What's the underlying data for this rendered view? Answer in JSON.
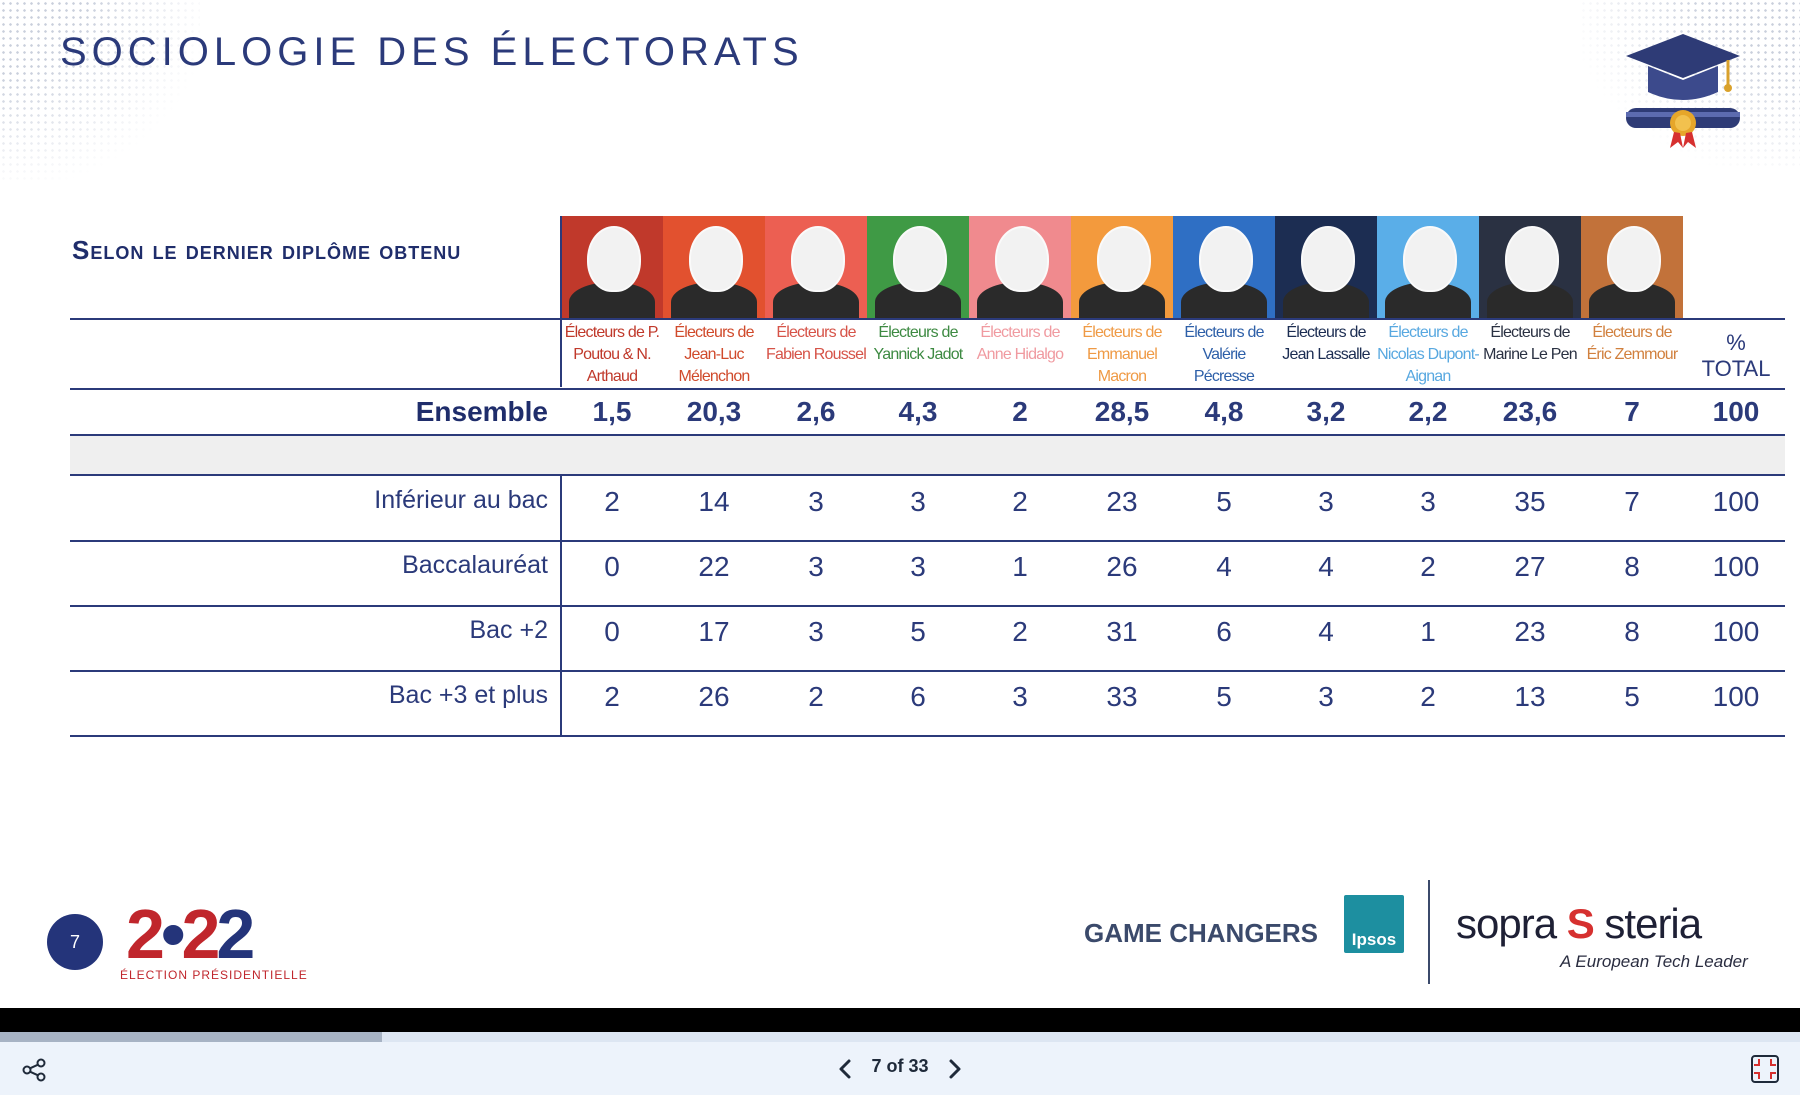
{
  "slide": {
    "title": "SOCIOLOGIE DES ÉLECTORATS",
    "subtitle": "Selon le dernier diplôme obtenu",
    "total_header_line1": "%",
    "total_header_line2": "TOTAL"
  },
  "candidates": [
    {
      "label": "Électeurs de P. Poutou & N. Arthaud",
      "header_color": "#c0392b",
      "label_color": "#c0392b"
    },
    {
      "label": "Électeurs de Jean-Luc Mélenchon",
      "header_color": "#e2512f",
      "label_color": "#d04a2b"
    },
    {
      "label": "Électeurs de Fabien Roussel",
      "header_color": "#ec5f52",
      "label_color": "#d65348"
    },
    {
      "label": "Électeurs de Yannick Jadot",
      "header_color": "#3f9a45",
      "label_color": "#3d8a42"
    },
    {
      "label": "Électeurs de Anne Hidalgo",
      "header_color": "#f08a8e",
      "label_color": "#f09aa0"
    },
    {
      "label": "Électeurs de Emmanuel Macron",
      "header_color": "#f39a3d",
      "label_color": "#ef9a45"
    },
    {
      "label": "Électeurs de Valérie Pécresse",
      "header_color": "#2f6fc4",
      "label_color": "#2d5fa8"
    },
    {
      "label": "Électeurs de Jean Lassalle",
      "header_color": "#1c2d52",
      "label_color": "#1c2d52"
    },
    {
      "label": "Électeurs de Nicolas Dupont-Aignan",
      "header_color": "#5aaee8",
      "label_color": "#58a8e0"
    },
    {
      "label": "Électeurs de Marine Le Pen",
      "header_color": "#2a3142",
      "label_color": "#2a3142"
    },
    {
      "label": "Électeurs de Éric Zemmour",
      "header_color": "#c2723a",
      "label_color": "#d1803e"
    }
  ],
  "rows": [
    {
      "label": "Ensemble",
      "values": [
        "1,5",
        "20,3",
        "2,6",
        "4,3",
        "2",
        "28,5",
        "4,8",
        "3,2",
        "2,2",
        "23,6",
        "7"
      ],
      "total": "100"
    },
    {
      "label": "Inférieur au bac",
      "values": [
        "2",
        "14",
        "3",
        "3",
        "2",
        "23",
        "5",
        "3",
        "3",
        "35",
        "7"
      ],
      "total": "100"
    },
    {
      "label": "Baccalauréat",
      "values": [
        "0",
        "22",
        "3",
        "3",
        "1",
        "26",
        "4",
        "4",
        "2",
        "27",
        "8"
      ],
      "total": "100"
    },
    {
      "label": "Bac +2",
      "values": [
        "0",
        "17",
        "3",
        "5",
        "2",
        "31",
        "6",
        "4",
        "1",
        "23",
        "8"
      ],
      "total": "100"
    },
    {
      "label": "Bac +3 et plus",
      "values": [
        "2",
        "26",
        "2",
        "6",
        "3",
        "33",
        "5",
        "3",
        "2",
        "13",
        "5"
      ],
      "total": "100"
    }
  ],
  "footer": {
    "page_number": "7",
    "logo_2022": "2•22",
    "logo_2022_sub": "ÉLECTION PRÉSIDENTIELLE",
    "game_changers": "GAME CHANGERS",
    "ipsos": "Ipsos",
    "sopra_left": "sopra",
    "sopra_mark": "S",
    "sopra_right": "steria",
    "sopra_sub": "A European Tech Leader"
  },
  "viewer": {
    "page_indicator": "7 of 33",
    "progress_fraction": 0.212,
    "share_icon": "share-icon",
    "prev_icon": "chevron-left-icon",
    "next_icon": "chevron-right-icon",
    "fullscreen_icon": "exit-fullscreen-icon"
  },
  "colors": {
    "title": "#2b3a7a",
    "table_text": "#2b3a7a",
    "badge": "#24347a",
    "logo_red": "#c0262c",
    "logo_blue": "#24347a"
  }
}
